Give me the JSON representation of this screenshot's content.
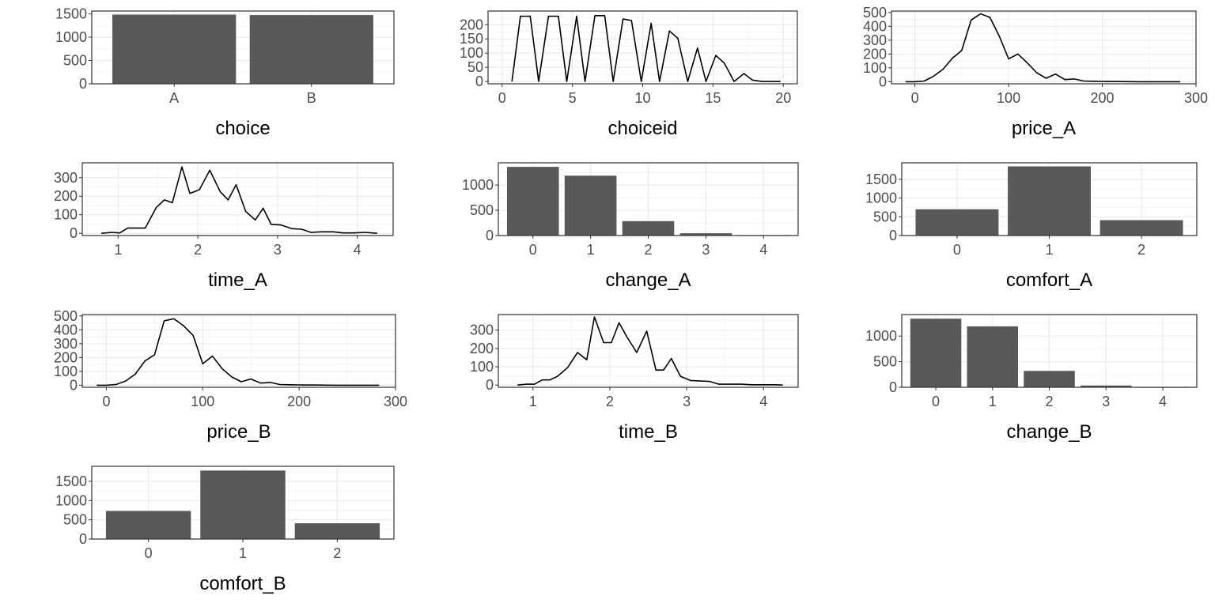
{
  "chart_data": [
    {
      "type": "bar",
      "xlabel": "choice",
      "categories": [
        "A",
        "B"
      ],
      "values": [
        1484,
        1474
      ],
      "ylim": [
        0,
        1560
      ],
      "yticks": [
        0,
        500,
        1000,
        1500
      ],
      "grid": true
    },
    {
      "type": "line",
      "xlabel": "choiceid",
      "x": [
        0.7,
        1.3,
        2.0,
        2.6,
        3.3,
        4.0,
        4.6,
        5.3,
        5.9,
        6.6,
        7.3,
        7.9,
        8.6,
        9.2,
        9.9,
        10.6,
        11.2,
        11.9,
        12.5,
        13.2,
        13.9,
        14.5,
        15.2,
        15.8,
        16.5,
        17.2,
        17.8,
        18.5,
        19.1,
        19.8
      ],
      "y": [
        0,
        230,
        230,
        0,
        230,
        230,
        0,
        230,
        0,
        232,
        232,
        0,
        220,
        215,
        0,
        205,
        0,
        178,
        152,
        0,
        118,
        0,
        92,
        65,
        0,
        28,
        5,
        0,
        0,
        0
      ],
      "xlim": [
        -1,
        21
      ],
      "ylim": [
        -8,
        248
      ],
      "xticks": [
        0,
        5,
        10,
        15,
        20
      ],
      "yticks": [
        0,
        50,
        100,
        150,
        200
      ],
      "grid": true
    },
    {
      "type": "line",
      "xlabel": "price_A",
      "x": [
        -10,
        0,
        10,
        20,
        30,
        40,
        50,
        60,
        70,
        80,
        90,
        100,
        110,
        120,
        130,
        140,
        150,
        160,
        170,
        180,
        190,
        200,
        220,
        240,
        260,
        283
      ],
      "y": [
        0,
        0,
        5,
        40,
        90,
        170,
        225,
        445,
        490,
        465,
        330,
        165,
        200,
        135,
        65,
        25,
        55,
        15,
        20,
        5,
        3,
        2,
        1,
        0,
        0,
        0
      ],
      "xlim": [
        -25,
        300
      ],
      "ylim": [
        -15,
        510
      ],
      "xticks": [
        0,
        100,
        200,
        300
      ],
      "yticks": [
        0,
        100,
        200,
        300,
        400,
        500
      ],
      "grid": true
    },
    {
      "type": "line",
      "xlabel": "time_A",
      "x": [
        0.79,
        0.92,
        1.02,
        1.12,
        1.22,
        1.34,
        1.48,
        1.58,
        1.68,
        1.8,
        1.9,
        2.02,
        2.15,
        2.28,
        2.38,
        2.48,
        2.6,
        2.72,
        2.82,
        2.92,
        3.04,
        3.18,
        3.3,
        3.42,
        3.55,
        3.7,
        3.82,
        3.95,
        4.1,
        4.25
      ],
      "y": [
        0,
        5,
        2,
        28,
        28,
        28,
        140,
        180,
        165,
        358,
        215,
        235,
        340,
        225,
        180,
        262,
        118,
        72,
        135,
        48,
        45,
        25,
        22,
        5,
        8,
        8,
        2,
        2,
        5,
        0
      ],
      "xlim": [
        0.55,
        4.45
      ],
      "ylim": [
        -12,
        380
      ],
      "xticks": [
        1,
        2,
        3,
        4
      ],
      "yticks": [
        0,
        100,
        200,
        300
      ],
      "grid": true
    },
    {
      "type": "bar",
      "xlabel": "change_A",
      "categories": [
        "0",
        "1",
        "2",
        "3",
        "4"
      ],
      "values": [
        1360,
        1185,
        285,
        45,
        2
      ],
      "ylim": [
        0,
        1440
      ],
      "yticks": [
        0,
        500,
        1000
      ],
      "grid": true
    },
    {
      "type": "bar",
      "xlabel": "comfort_A",
      "categories": [
        "0",
        "1",
        "2"
      ],
      "values": [
        700,
        1845,
        410
      ],
      "ylim": [
        0,
        1940
      ],
      "yticks": [
        0,
        500,
        1000,
        1500
      ],
      "grid": true
    },
    {
      "type": "line",
      "xlabel": "price_B",
      "x": [
        -10,
        0,
        10,
        20,
        30,
        40,
        50,
        60,
        70,
        80,
        90,
        100,
        110,
        120,
        130,
        140,
        150,
        160,
        170,
        180,
        190,
        200,
        220,
        240,
        260,
        283
      ],
      "y": [
        0,
        0,
        5,
        30,
        80,
        175,
        220,
        465,
        480,
        430,
        360,
        155,
        210,
        120,
        60,
        25,
        45,
        15,
        20,
        5,
        3,
        2,
        1,
        0,
        0,
        0
      ],
      "xlim": [
        -25,
        300
      ],
      "ylim": [
        -15,
        510
      ],
      "xticks": [
        0,
        100,
        200,
        300
      ],
      "yticks": [
        0,
        100,
        200,
        300,
        400,
        500
      ],
      "grid": true
    },
    {
      "type": "line",
      "xlabel": "time_B",
      "x": [
        0.8,
        0.92,
        1.02,
        1.12,
        1.22,
        1.32,
        1.45,
        1.58,
        1.7,
        1.8,
        1.92,
        2.02,
        2.12,
        2.22,
        2.35,
        2.48,
        2.6,
        2.7,
        2.8,
        2.92,
        3.05,
        3.18,
        3.3,
        3.42,
        3.55,
        3.7,
        3.85,
        4.0,
        4.15,
        4.25
      ],
      "y": [
        0,
        5,
        5,
        28,
        28,
        48,
        95,
        178,
        138,
        372,
        232,
        232,
        340,
        265,
        178,
        295,
        82,
        82,
        145,
        48,
        25,
        22,
        20,
        5,
        5,
        5,
        2,
        2,
        2,
        0
      ],
      "xlim": [
        0.55,
        4.45
      ],
      "ylim": [
        -12,
        385
      ],
      "xticks": [
        1,
        2,
        3,
        4
      ],
      "yticks": [
        0,
        100,
        200,
        300
      ],
      "grid": true
    },
    {
      "type": "bar",
      "xlabel": "change_B",
      "categories": [
        "0",
        "1",
        "2",
        "3",
        "4"
      ],
      "values": [
        1340,
        1190,
        320,
        35,
        2
      ],
      "ylim": [
        0,
        1420
      ],
      "yticks": [
        0,
        500,
        1000
      ],
      "grid": true
    },
    {
      "type": "bar",
      "xlabel": "comfort_B",
      "categories": [
        "0",
        "1",
        "2"
      ],
      "values": [
        730,
        1780,
        410
      ],
      "ylim": [
        0,
        1890
      ],
      "yticks": [
        0,
        500,
        1000,
        1500
      ],
      "grid": true
    }
  ],
  "colors": {
    "bar": "#595959",
    "line": "#000000",
    "grid_major": "#ebebeb",
    "grid_minor": "#f5f5f5",
    "text": "#4d4d4d",
    "title": "#000000",
    "border": "#333333"
  }
}
